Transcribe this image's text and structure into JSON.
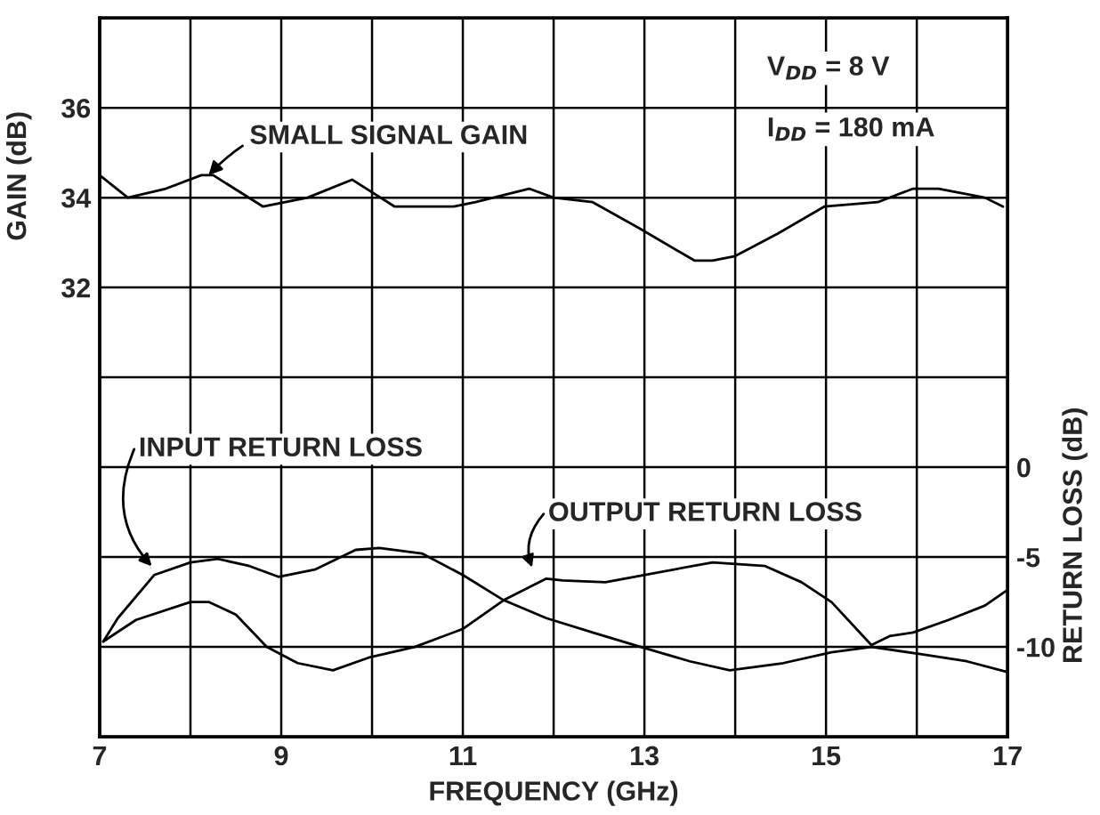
{
  "chart_data": {
    "type": "line",
    "xlabel": "FREQUENCY (GHz)",
    "ylabel": "GAIN (dB)",
    "y2label": "RETURN LOSS (dB)",
    "xlim": [
      7,
      17
    ],
    "xticks": [
      7,
      {
        "value": 8,
        "label": null
      },
      9,
      {
        "value": 10,
        "label": null
      },
      11,
      {
        "value": 12,
        "label": null
      },
      13,
      {
        "value": 14,
        "label": null
      },
      15,
      {
        "value": 16,
        "label": null
      },
      17
    ],
    "ylim": [
      22,
      38
    ],
    "yticks": [
      {
        "value": 22,
        "label": null
      },
      {
        "value": 24,
        "label": null
      },
      {
        "value": 26,
        "label": null
      },
      {
        "value": 28,
        "label": null
      },
      {
        "value": 30,
        "label": null
      },
      32,
      34,
      36,
      {
        "value": 38,
        "label": null
      }
    ],
    "y2lim": [
      -15,
      25
    ],
    "y2ticks": [
      -10,
      -5,
      0
    ],
    "grid": true,
    "legend": false,
    "marker": "none",
    "line_style": "solid",
    "series": [
      {
        "color": "#000000",
        "x": [
          7.0,
          7.31,
          7.73,
          8.12,
          8.25,
          8.8,
          9.29,
          9.78,
          10.25,
          10.9,
          11.14,
          11.73,
          12.0,
          12.43,
          12.96,
          13.55,
          13.75,
          14.0,
          14.47,
          14.98,
          15.57,
          15.96,
          16.24,
          16.75,
          16.95
        ],
        "values": [
          34.5,
          34.0,
          34.2,
          34.5,
          34.5,
          33.8,
          34.0,
          34.4,
          33.8,
          33.8,
          33.9,
          34.2,
          34.0,
          33.9,
          33.3,
          32.6,
          32.6,
          32.7,
          33.2,
          33.8,
          33.9,
          34.2,
          34.2,
          34.0,
          33.8
        ]
      },
      {
        "color": "#000000",
        "axis": "y2",
        "x": [
          7.04,
          7.2,
          7.6,
          8.0,
          8.3,
          8.65,
          8.97,
          9.37,
          9.82,
          10.08,
          10.55,
          11.0,
          11.45,
          11.92,
          12.43,
          12.96,
          13.5,
          13.94,
          14.53,
          15.06,
          15.5,
          16.04,
          16.55,
          17.0
        ],
        "values": [
          -9.7,
          -8.4,
          -6.0,
          -5.3,
          -5.1,
          -5.5,
          -6.1,
          -5.7,
          -4.6,
          -4.5,
          -4.8,
          -6.0,
          -7.4,
          -8.4,
          -9.2,
          -10.0,
          -10.8,
          -11.3,
          -10.9,
          -10.3,
          -10.0,
          -10.4,
          -10.8,
          -11.4
        ]
      },
      {
        "color": "#000000",
        "axis": "y2",
        "x": [
          7.04,
          7.4,
          8.0,
          8.2,
          8.5,
          8.84,
          9.18,
          9.57,
          9.96,
          10.47,
          11.0,
          11.45,
          11.92,
          12.1,
          12.57,
          13.1,
          13.75,
          14.33,
          14.73,
          15.06,
          15.5,
          15.7,
          15.96,
          16.35,
          16.75,
          16.98
        ],
        "values": [
          -9.7,
          -8.5,
          -7.5,
          -7.5,
          -8.2,
          -10.0,
          -10.9,
          -11.3,
          -10.6,
          -10.0,
          -9.0,
          -7.4,
          -6.2,
          -6.3,
          -6.4,
          -5.9,
          -5.3,
          -5.5,
          -6.4,
          -7.5,
          -9.9,
          -9.4,
          -9.2,
          -8.5,
          -7.7,
          -6.9
        ]
      }
    ],
    "annotations": [
      {
        "text": "SMALL SIGNAL GAIN",
        "x": 8.2,
        "y": 34.5
      },
      "INPUT RETURN LOSS",
      "OUTPUT RETURN LOSS",
      "V$_{DD}$ = 8 V",
      "I$_{DD}$ = 180 mA"
    ]
  }
}
